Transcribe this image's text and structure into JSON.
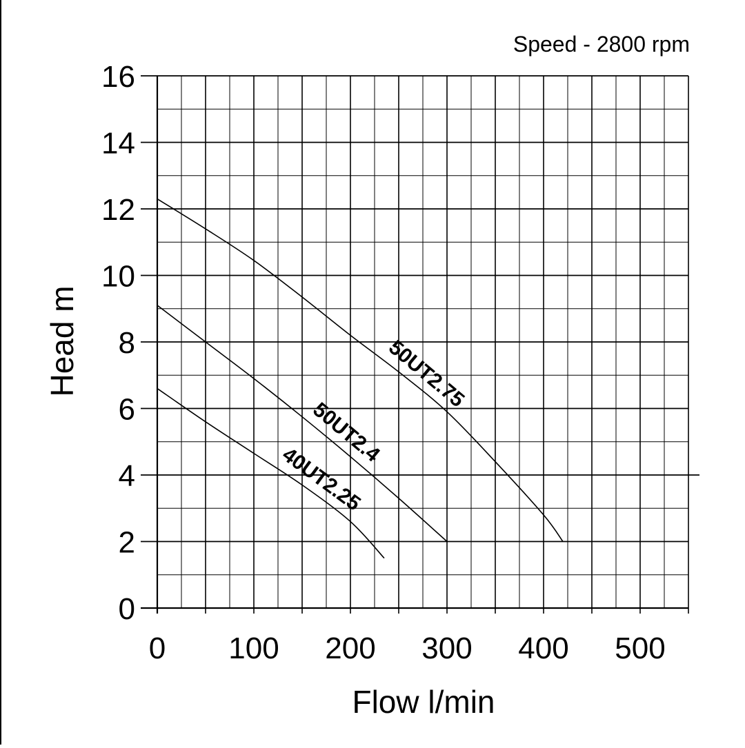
{
  "chart_data": {
    "type": "line",
    "annotation": "Speed - 2800 rpm",
    "xlabel": "Flow l/min",
    "ylabel": "Head m",
    "xlim": [
      0,
      550
    ],
    "ylim": [
      0,
      16
    ],
    "xticks": [
      0,
      100,
      200,
      300,
      400,
      500
    ],
    "yticks": [
      0,
      2,
      4,
      6,
      8,
      10,
      12,
      14,
      16
    ],
    "x_minor_step": 25,
    "y_minor_step": 1,
    "grid": true,
    "series": [
      {
        "name": "50UT2.75",
        "color": "#000000",
        "points": [
          [
            0,
            12.3
          ],
          [
            50,
            11.4
          ],
          [
            100,
            10.45
          ],
          [
            150,
            9.35
          ],
          [
            200,
            8.2
          ],
          [
            250,
            7.1
          ],
          [
            300,
            5.9
          ],
          [
            350,
            4.4
          ],
          [
            400,
            2.8
          ],
          [
            420,
            2.0
          ]
        ]
      },
      {
        "name": "50UT2.4",
        "color": "#000000",
        "points": [
          [
            0,
            9.1
          ],
          [
            50,
            8.0
          ],
          [
            100,
            6.9
          ],
          [
            150,
            5.75
          ],
          [
            200,
            4.55
          ],
          [
            250,
            3.3
          ],
          [
            300,
            2.0
          ]
        ]
      },
      {
        "name": "40UT2.25",
        "color": "#000000",
        "points": [
          [
            0,
            6.6
          ],
          [
            50,
            5.6
          ],
          [
            100,
            4.65
          ],
          [
            150,
            3.7
          ],
          [
            200,
            2.6
          ],
          [
            235,
            1.5
          ]
        ]
      }
    ]
  }
}
